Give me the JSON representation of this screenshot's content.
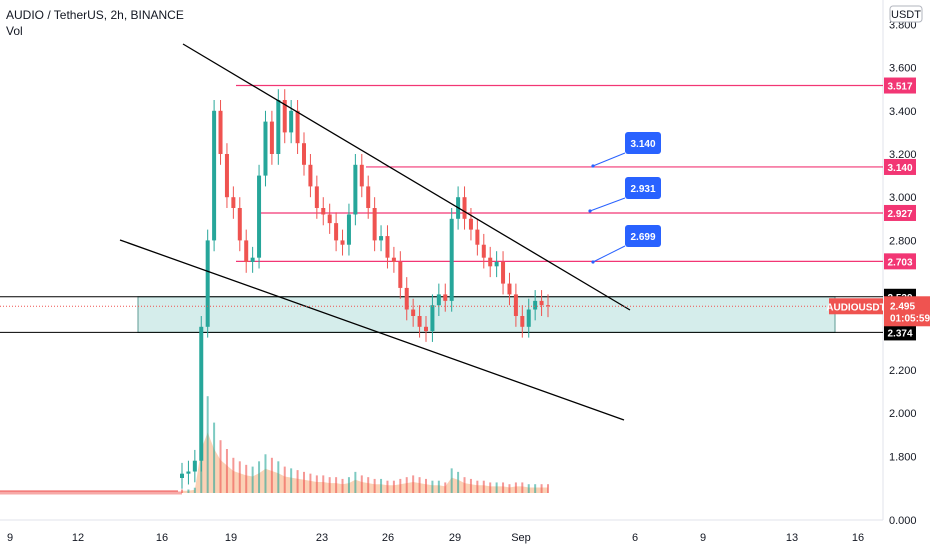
{
  "header": {
    "title": "AUDIO / TetherUS, 2h, BINANCE",
    "volume_label": "Vol"
  },
  "currency_badge": "USDT",
  "colors": {
    "up": "#26a69a",
    "down": "#ef5350",
    "level_line": "#f23674",
    "callout": "#2962ff",
    "zone_fill": "#b2dfdb",
    "volume_area": "#f7a46b",
    "price_tag": "#ef5350"
  },
  "chart_data": {
    "type": "candlestick",
    "symbol": "AUDIOUSDT",
    "timeframe": "2h",
    "exchange": "BINANCE",
    "y_ticks": [
      "0.000",
      "1.800",
      "2.000",
      "2.200",
      "2.800",
      "3.000",
      "3.200",
      "3.400",
      "3.600",
      "3.800"
    ],
    "x_ticks": [
      "9",
      "12",
      "16",
      "19",
      "23",
      "26",
      "29",
      "Sep",
      "6",
      "9",
      "13",
      "16"
    ],
    "horizontal_levels": [
      {
        "price": 3.517,
        "label": "3.517"
      },
      {
        "price": 3.14,
        "label": "3.140"
      },
      {
        "price": 2.927,
        "label": "2.927"
      },
      {
        "price": 2.703,
        "label": "2.703"
      }
    ],
    "callouts": [
      "3.140",
      "2.931",
      "2.699"
    ],
    "zone": {
      "top": 2.539,
      "bottom": 2.374,
      "top_label": "2.539",
      "bottom_label": "2.374"
    },
    "current_price": {
      "symbol": "AUDIOUSDT",
      "price": "2.495",
      "countdown": "01:05:59"
    },
    "ohlc_closes": [
      1.72,
      1.73,
      1.78,
      2.4,
      2.8,
      3.4,
      3.2,
      3.0,
      2.95,
      2.8,
      2.7,
      2.72,
      3.1,
      3.35,
      3.2,
      3.45,
      3.3,
      3.4,
      3.25,
      3.15,
      3.05,
      2.95,
      2.92,
      2.88,
      2.8,
      2.78,
      2.92,
      3.15,
      3.05,
      2.95,
      2.8,
      2.82,
      2.72,
      2.7,
      2.58,
      2.48,
      2.45,
      2.4,
      2.38,
      2.5,
      2.55,
      2.52,
      2.9,
      3.0,
      2.9,
      2.85,
      2.78,
      2.72,
      2.68,
      2.7,
      2.6,
      2.55,
      2.45,
      2.4,
      2.48,
      2.52,
      2.5,
      2.495
    ],
    "volume": [
      2,
      2,
      3,
      40,
      55,
      40,
      30,
      25,
      20,
      18,
      16,
      15,
      18,
      22,
      20,
      18,
      15,
      14,
      13,
      12,
      11,
      10,
      10,
      9,
      9,
      8,
      9,
      12,
      10,
      9,
      8,
      8,
      7,
      7,
      8,
      9,
      10,
      9,
      8,
      7,
      7,
      6,
      14,
      12,
      9,
      8,
      7,
      7,
      6,
      6,
      6,
      5,
      6,
      6,
      5,
      5,
      5,
      5
    ]
  }
}
